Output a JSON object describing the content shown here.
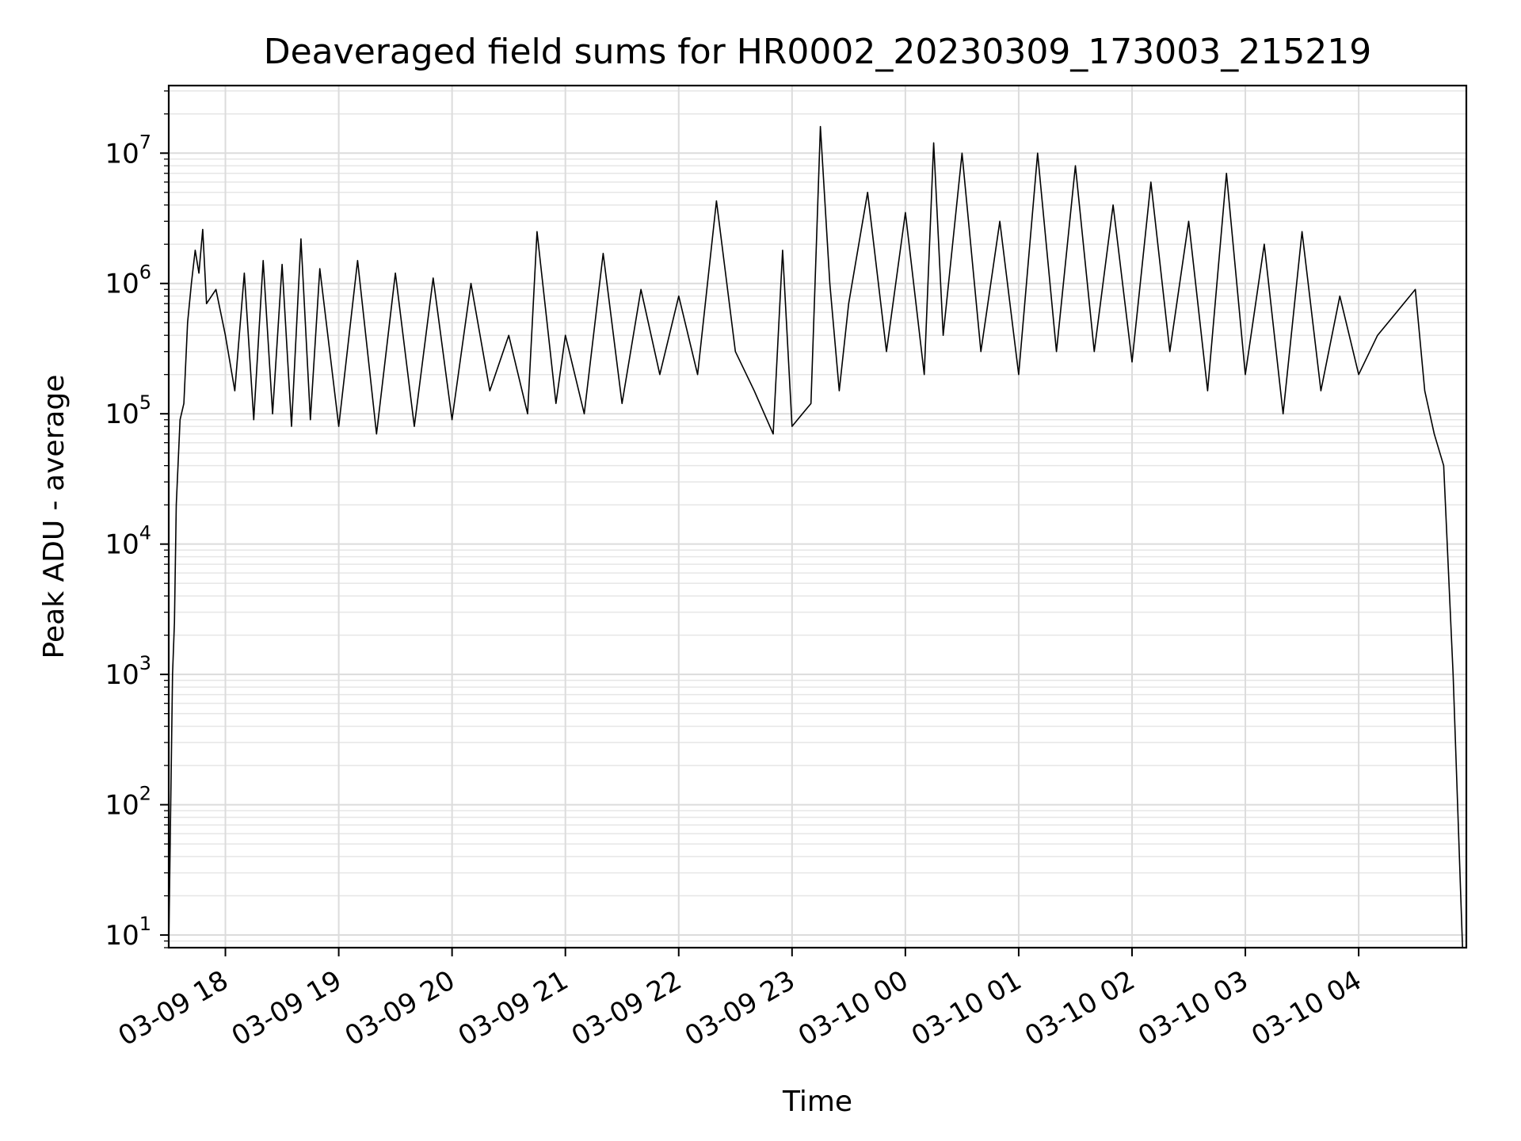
{
  "chart_data": {
    "type": "line",
    "title": "Deaveraged field sums for HR0002_20230309_173003_215219",
    "xlabel": "Time",
    "ylabel": "Peak ADU - average",
    "yscale": "log",
    "ylim": [
      8,
      33000000
    ],
    "xlim": [
      "2023-03-09 17:30:00",
      "2023-03-10 04:57:00"
    ],
    "grid": true,
    "line_color": "#000000",
    "xticks": [
      {
        "label": "03-09 18",
        "t": "2023-03-09 18:00"
      },
      {
        "label": "03-09 19",
        "t": "2023-03-09 19:00"
      },
      {
        "label": "03-09 20",
        "t": "2023-03-09 20:00"
      },
      {
        "label": "03-09 21",
        "t": "2023-03-09 21:00"
      },
      {
        "label": "03-09 22",
        "t": "2023-03-09 22:00"
      },
      {
        "label": "03-09 23",
        "t": "2023-03-09 23:00"
      },
      {
        "label": "03-10 00",
        "t": "2023-03-10 00:00"
      },
      {
        "label": "03-10 01",
        "t": "2023-03-10 01:00"
      },
      {
        "label": "03-10 02",
        "t": "2023-03-10 02:00"
      },
      {
        "label": "03-10 03",
        "t": "2023-03-10 03:00"
      },
      {
        "label": "03-10 04",
        "t": "2023-03-10 04:00"
      }
    ],
    "yticks": [
      {
        "base": "10",
        "exp": "1",
        "value": 10
      },
      {
        "base": "10",
        "exp": "2",
        "value": 100
      },
      {
        "base": "10",
        "exp": "3",
        "value": 1000
      },
      {
        "base": "10",
        "exp": "4",
        "value": 10000
      },
      {
        "base": "10",
        "exp": "5",
        "value": 100000
      },
      {
        "base": "10",
        "exp": "6",
        "value": 1000000
      },
      {
        "base": "10",
        "exp": "7",
        "value": 10000000
      }
    ],
    "series": [
      {
        "points": [
          [
            "2023-03-09 17:30",
            8
          ],
          [
            "2023-03-09 17:32",
            1000
          ],
          [
            "2023-03-09 17:33",
            2500
          ],
          [
            "2023-03-09 17:34",
            20000
          ],
          [
            "2023-03-09 17:36",
            90000
          ],
          [
            "2023-03-09 17:38",
            120000
          ],
          [
            "2023-03-09 17:40",
            500000
          ],
          [
            "2023-03-09 17:42",
            1000000
          ],
          [
            "2023-03-09 17:44",
            1800000
          ],
          [
            "2023-03-09 17:46",
            1200000
          ],
          [
            "2023-03-09 17:48",
            2600000
          ],
          [
            "2023-03-09 17:50",
            700000
          ],
          [
            "2023-03-09 17:55",
            900000
          ],
          [
            "2023-03-09 18:00",
            400000
          ],
          [
            "2023-03-09 18:05",
            150000
          ],
          [
            "2023-03-09 18:10",
            1200000
          ],
          [
            "2023-03-09 18:15",
            90000
          ],
          [
            "2023-03-09 18:20",
            1500000
          ],
          [
            "2023-03-09 18:25",
            100000
          ],
          [
            "2023-03-09 18:30",
            1400000
          ],
          [
            "2023-03-09 18:35",
            80000
          ],
          [
            "2023-03-09 18:40",
            2200000
          ],
          [
            "2023-03-09 18:45",
            90000
          ],
          [
            "2023-03-09 18:50",
            1300000
          ],
          [
            "2023-03-09 19:00",
            80000
          ],
          [
            "2023-03-09 19:10",
            1500000
          ],
          [
            "2023-03-09 19:20",
            70000
          ],
          [
            "2023-03-09 19:30",
            1200000
          ],
          [
            "2023-03-09 19:40",
            80000
          ],
          [
            "2023-03-09 19:50",
            1100000
          ],
          [
            "2023-03-09 20:00",
            90000
          ],
          [
            "2023-03-09 20:10",
            1000000
          ],
          [
            "2023-03-09 20:20",
            150000
          ],
          [
            "2023-03-09 20:30",
            400000
          ],
          [
            "2023-03-09 20:40",
            100000
          ],
          [
            "2023-03-09 20:45",
            2500000
          ],
          [
            "2023-03-09 20:55",
            120000
          ],
          [
            "2023-03-09 21:00",
            400000
          ],
          [
            "2023-03-09 21:10",
            100000
          ],
          [
            "2023-03-09 21:20",
            1700000
          ],
          [
            "2023-03-09 21:30",
            120000
          ],
          [
            "2023-03-09 21:40",
            900000
          ],
          [
            "2023-03-09 21:50",
            200000
          ],
          [
            "2023-03-09 22:00",
            800000
          ],
          [
            "2023-03-09 22:10",
            200000
          ],
          [
            "2023-03-09 22:20",
            4300000
          ],
          [
            "2023-03-09 22:30",
            300000
          ],
          [
            "2023-03-09 22:40",
            150000
          ],
          [
            "2023-03-09 22:50",
            70000
          ],
          [
            "2023-03-09 22:55",
            1800000
          ],
          [
            "2023-03-09 23:00",
            80000
          ],
          [
            "2023-03-09 23:10",
            120000
          ],
          [
            "2023-03-09 23:15",
            16000000
          ],
          [
            "2023-03-09 23:20",
            1000000
          ],
          [
            "2023-03-09 23:25",
            150000
          ],
          [
            "2023-03-09 23:30",
            700000
          ],
          [
            "2023-03-09 23:40",
            5000000
          ],
          [
            "2023-03-09 23:50",
            300000
          ],
          [
            "2023-03-10 00:00",
            3500000
          ],
          [
            "2023-03-10 00:10",
            200000
          ],
          [
            "2023-03-10 00:15",
            12000000
          ],
          [
            "2023-03-10 00:20",
            400000
          ],
          [
            "2023-03-10 00:30",
            10000000
          ],
          [
            "2023-03-10 00:40",
            300000
          ],
          [
            "2023-03-10 00:50",
            3000000
          ],
          [
            "2023-03-10 01:00",
            200000
          ],
          [
            "2023-03-10 01:10",
            10000000
          ],
          [
            "2023-03-10 01:20",
            300000
          ],
          [
            "2023-03-10 01:30",
            8000000
          ],
          [
            "2023-03-10 01:40",
            300000
          ],
          [
            "2023-03-10 01:50",
            4000000
          ],
          [
            "2023-03-10 02:00",
            250000
          ],
          [
            "2023-03-10 02:10",
            6000000
          ],
          [
            "2023-03-10 02:20",
            300000
          ],
          [
            "2023-03-10 02:30",
            3000000
          ],
          [
            "2023-03-10 02:40",
            150000
          ],
          [
            "2023-03-10 02:50",
            7000000
          ],
          [
            "2023-03-10 03:00",
            200000
          ],
          [
            "2023-03-10 03:10",
            2000000
          ],
          [
            "2023-03-10 03:20",
            100000
          ],
          [
            "2023-03-10 03:30",
            2500000
          ],
          [
            "2023-03-10 03:40",
            150000
          ],
          [
            "2023-03-10 03:50",
            800000
          ],
          [
            "2023-03-10 04:00",
            200000
          ],
          [
            "2023-03-10 04:10",
            400000
          ],
          [
            "2023-03-10 04:20",
            600000
          ],
          [
            "2023-03-10 04:30",
            900000
          ],
          [
            "2023-03-10 04:35",
            150000
          ],
          [
            "2023-03-10 04:40",
            70000
          ],
          [
            "2023-03-10 04:45",
            40000
          ],
          [
            "2023-03-10 04:50",
            1000
          ],
          [
            "2023-03-10 04:55",
            8
          ]
        ]
      }
    ]
  }
}
